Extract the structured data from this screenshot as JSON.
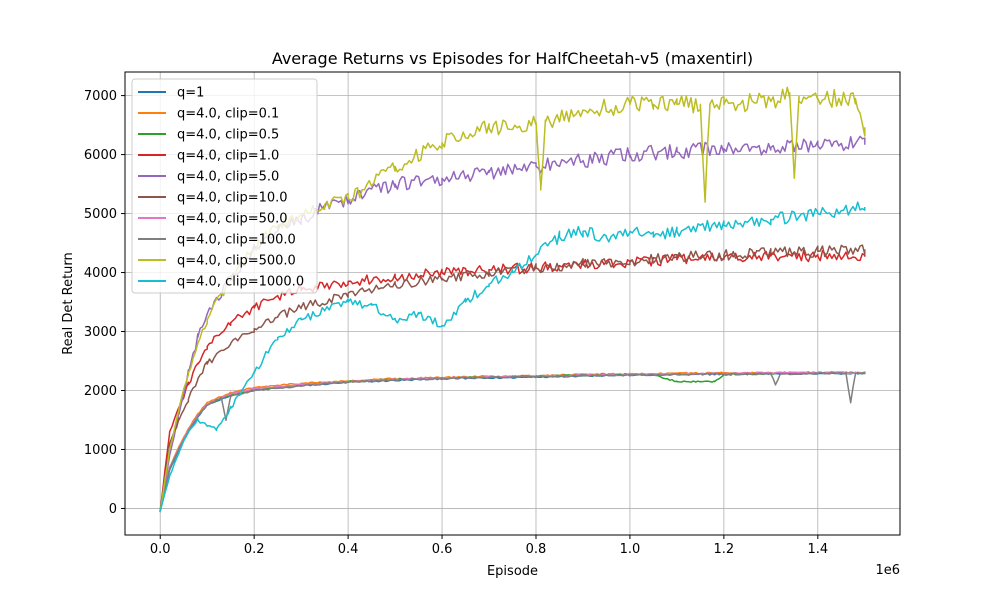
{
  "chart_data": {
    "type": "line",
    "title": "Average Returns vs Episodes for HalfCheetah-v5 (maxentirl)",
    "xlabel": "Episode",
    "ylabel": "Real Det Return",
    "x_offset_label": "1e6",
    "xlim": [
      -0.075,
      1.575
    ],
    "ylim": [
      -450,
      7400
    ],
    "x_ticks": [
      0.0,
      0.2,
      0.4,
      0.6,
      0.8,
      1.0,
      1.2,
      1.4
    ],
    "x_tick_labels": [
      "0.0",
      "0.2",
      "0.4",
      "0.6",
      "0.8",
      "1.0",
      "1.2",
      "1.4"
    ],
    "y_ticks": [
      0,
      1000,
      2000,
      3000,
      4000,
      5000,
      6000,
      7000
    ],
    "y_tick_labels": [
      "0",
      "1000",
      "2000",
      "3000",
      "4000",
      "5000",
      "6000",
      "7000"
    ],
    "grid": true,
    "legend_position": "top-left",
    "series": [
      {
        "name": "q=1",
        "color": "#1f77b4",
        "x": [
          0,
          0.02,
          0.04,
          0.06,
          0.08,
          0.1,
          0.15,
          0.2,
          0.3,
          0.4,
          0.5,
          0.6,
          0.7,
          0.8,
          0.9,
          1.0,
          1.1,
          1.2,
          1.3,
          1.4,
          1.5
        ],
        "y": [
          -50,
          650,
          1000,
          1300,
          1550,
          1750,
          1920,
          2000,
          2080,
          2140,
          2170,
          2200,
          2210,
          2230,
          2250,
          2260,
          2270,
          2280,
          2290,
          2290,
          2290
        ]
      },
      {
        "name": "q=4.0, clip=0.1",
        "color": "#ff7f0e",
        "x": [
          0,
          0.02,
          0.04,
          0.06,
          0.08,
          0.1,
          0.15,
          0.2,
          0.3,
          0.4,
          0.5,
          0.6,
          0.7,
          0.8,
          0.9,
          1.0,
          1.1,
          1.2,
          1.3,
          1.4,
          1.5
        ],
        "y": [
          -30,
          700,
          1050,
          1350,
          1600,
          1800,
          1960,
          2050,
          2120,
          2160,
          2200,
          2220,
          2240,
          2250,
          2270,
          2280,
          2290,
          2300,
          2300,
          2310,
          2300
        ]
      },
      {
        "name": "q=4.0, clip=0.5",
        "color": "#2ca02c",
        "x": [
          0,
          0.02,
          0.04,
          0.06,
          0.08,
          0.1,
          0.15,
          0.2,
          0.3,
          0.4,
          0.5,
          0.6,
          0.7,
          0.8,
          0.9,
          1.0,
          1.05,
          1.1,
          1.15,
          1.18,
          1.2,
          1.3,
          1.4,
          1.5
        ],
        "y": [
          -40,
          680,
          1020,
          1320,
          1570,
          1760,
          1930,
          2010,
          2090,
          2150,
          2190,
          2210,
          2230,
          2240,
          2260,
          2270,
          2270,
          2150,
          2150,
          2150,
          2270,
          2290,
          2300,
          2300
        ]
      },
      {
        "name": "q=4.0, clip=1.0",
        "color": "#d62728",
        "x": [
          0,
          0.02,
          0.04,
          0.06,
          0.08,
          0.1,
          0.15,
          0.2,
          0.25,
          0.3,
          0.4,
          0.5,
          0.6,
          0.7,
          0.8,
          0.9,
          1.0,
          1.1,
          1.2,
          1.3,
          1.4,
          1.5
        ],
        "y": [
          -40,
          1300,
          1700,
          2100,
          2450,
          2750,
          3150,
          3400,
          3600,
          3700,
          3850,
          3920,
          4000,
          4050,
          4080,
          4130,
          4180,
          4220,
          4250,
          4280,
          4280,
          4280
        ]
      },
      {
        "name": "q=4.0, clip=5.0",
        "color": "#9467bd",
        "x": [
          0,
          0.02,
          0.04,
          0.06,
          0.08,
          0.1,
          0.15,
          0.2,
          0.25,
          0.3,
          0.35,
          0.4,
          0.5,
          0.6,
          0.7,
          0.8,
          0.9,
          1.0,
          1.1,
          1.2,
          1.3,
          1.4,
          1.5
        ],
        "y": [
          -50,
          900,
          1600,
          2300,
          2900,
          3300,
          3900,
          4400,
          4700,
          4900,
          5100,
          5250,
          5500,
          5600,
          5700,
          5800,
          5900,
          6000,
          6050,
          6100,
          6120,
          6150,
          6180
        ]
      },
      {
        "name": "q=4.0, clip=10.0",
        "color": "#8c564b",
        "x": [
          0,
          0.02,
          0.04,
          0.06,
          0.08,
          0.1,
          0.15,
          0.2,
          0.25,
          0.3,
          0.4,
          0.5,
          0.6,
          0.7,
          0.8,
          0.9,
          1.0,
          1.1,
          1.2,
          1.3,
          1.4,
          1.5
        ],
        "y": [
          -40,
          1100,
          1500,
          1850,
          2200,
          2450,
          2800,
          3050,
          3250,
          3400,
          3650,
          3800,
          3900,
          4000,
          4080,
          4150,
          4200,
          4250,
          4300,
          4330,
          4360,
          4380
        ]
      },
      {
        "name": "q=4.0, clip=50.0",
        "color": "#e377c2",
        "x": [
          0,
          0.02,
          0.04,
          0.06,
          0.08,
          0.1,
          0.15,
          0.2,
          0.3,
          0.4,
          0.5,
          0.6,
          0.7,
          0.8,
          0.9,
          1.0,
          1.1,
          1.2,
          1.3,
          1.4,
          1.5
        ],
        "y": [
          -40,
          690,
          1030,
          1330,
          1580,
          1770,
          1940,
          2030,
          2100,
          2150,
          2190,
          2210,
          2230,
          2240,
          2260,
          2270,
          2280,
          2290,
          2300,
          2300,
          2300
        ]
      },
      {
        "name": "q=4.0, clip=100.0",
        "color": "#7f7f7f",
        "x": [
          0,
          0.02,
          0.04,
          0.06,
          0.08,
          0.1,
          0.13,
          0.14,
          0.15,
          0.2,
          0.3,
          0.4,
          0.5,
          0.6,
          0.7,
          0.8,
          0.9,
          1.0,
          1.1,
          1.2,
          1.3,
          1.31,
          1.32,
          1.4,
          1.46,
          1.47,
          1.48,
          1.5
        ],
        "y": [
          -40,
          670,
          1010,
          1310,
          1560,
          1750,
          1880,
          1500,
          1900,
          2000,
          2080,
          2140,
          2180,
          2200,
          2220,
          2240,
          2250,
          2260,
          2270,
          2280,
          2280,
          2100,
          2280,
          2290,
          2290,
          1800,
          2290,
          2290
        ]
      },
      {
        "name": "q=4.0, clip=500.0",
        "color": "#bcbd22",
        "x": [
          0,
          0.02,
          0.04,
          0.06,
          0.08,
          0.1,
          0.15,
          0.2,
          0.25,
          0.3,
          0.35,
          0.4,
          0.5,
          0.6,
          0.7,
          0.8,
          0.81,
          0.82,
          0.9,
          1.0,
          1.05,
          1.1,
          1.15,
          1.16,
          1.17,
          1.2,
          1.3,
          1.34,
          1.35,
          1.36,
          1.4,
          1.48,
          1.5
        ],
        "y": [
          -50,
          1000,
          1700,
          2300,
          2800,
          3200,
          3900,
          4400,
          4800,
          5000,
          5150,
          5250,
          5800,
          6200,
          6450,
          6550,
          5400,
          6550,
          6750,
          6850,
          6850,
          6850,
          6850,
          5200,
          6850,
          6850,
          6900,
          7050,
          5600,
          6900,
          6950,
          6950,
          6450
        ]
      },
      {
        "name": "q=4.0, clip=1000.0",
        "color": "#17becf",
        "x": [
          0,
          0.02,
          0.04,
          0.06,
          0.08,
          0.1,
          0.12,
          0.15,
          0.2,
          0.25,
          0.3,
          0.35,
          0.4,
          0.45,
          0.5,
          0.55,
          0.6,
          0.65,
          0.7,
          0.75,
          0.8,
          0.85,
          0.9,
          0.95,
          1.0,
          1.05,
          1.1,
          1.15,
          1.2,
          1.3,
          1.4,
          1.5
        ],
        "y": [
          -40,
          550,
          950,
          1300,
          1500,
          1400,
          1350,
          1700,
          2300,
          2900,
          3200,
          3350,
          3500,
          3450,
          3200,
          3300,
          3100,
          3500,
          3800,
          4000,
          4300,
          4600,
          4700,
          4600,
          4700,
          4600,
          4700,
          4800,
          4800,
          4900,
          5000,
          5100
        ]
      }
    ]
  }
}
